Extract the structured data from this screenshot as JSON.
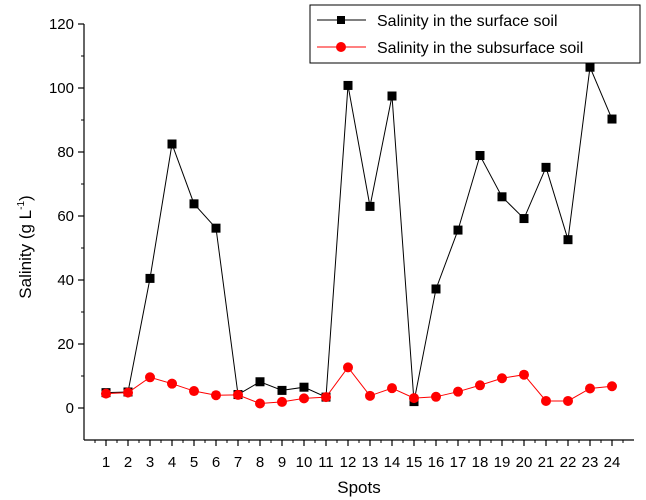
{
  "chart_data": {
    "type": "line",
    "xlabel": "Spots",
    "ylabel_main": "Salinity (g L",
    "ylabel_sup": "-1",
    "ylabel_close": ")",
    "x": [
      1,
      2,
      3,
      4,
      5,
      6,
      7,
      8,
      9,
      10,
      11,
      12,
      13,
      14,
      15,
      16,
      17,
      18,
      19,
      20,
      21,
      22,
      23,
      24
    ],
    "xlim": [
      0,
      25
    ],
    "ylim": [
      -10,
      120
    ],
    "yticks": [
      0,
      20,
      40,
      60,
      80,
      100,
      120
    ],
    "grid": false,
    "legend_position": "top-right",
    "series": [
      {
        "name": "Salinity in the surface soil",
        "color": "#000000",
        "marker": "square",
        "values": [
          4.8,
          5.0,
          40.5,
          82.5,
          63.8,
          56.2,
          4.2,
          8.2,
          5.5,
          6.5,
          3.4,
          100.8,
          63.0,
          97.5,
          2.0,
          37.2,
          55.6,
          78.9,
          66.0,
          59.2,
          75.2,
          52.6,
          106.5,
          90.3
        ]
      },
      {
        "name": "Salinity in the subsurface soil",
        "color": "#ff0000",
        "marker": "circle",
        "values": [
          4.5,
          4.8,
          9.6,
          7.6,
          5.3,
          4.0,
          4.1,
          1.4,
          1.9,
          3.0,
          3.4,
          12.7,
          3.8,
          6.2,
          3.1,
          3.5,
          5.1,
          7.1,
          9.3,
          10.4,
          2.2,
          2.2,
          6.1,
          6.8
        ]
      }
    ]
  }
}
